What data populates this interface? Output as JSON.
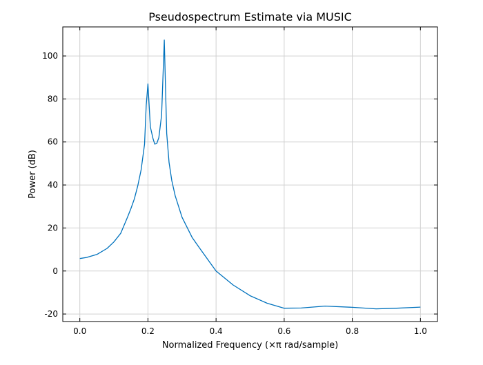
{
  "chart_data": {
    "type": "line",
    "title": "Pseudospectrum Estimate via MUSIC",
    "xlabel": "Normalized Frequency (×π rad/sample)",
    "ylabel": "Power (dB)",
    "xlim": [
      -0.05,
      1.05
    ],
    "ylim": [
      -23.5,
      113.5
    ],
    "xticks": [
      0.0,
      0.2,
      0.4,
      0.6,
      0.8,
      1.0
    ],
    "xtick_labels": [
      "0.0",
      "0.2",
      "0.4",
      "0.6",
      "0.8",
      "1.0"
    ],
    "yticks": [
      -20,
      0,
      20,
      40,
      60,
      80,
      100
    ],
    "ytick_labels": [
      "-20",
      "0",
      "20",
      "40",
      "60",
      "80",
      "100"
    ],
    "grid": true,
    "line_color": "#0072BD",
    "series": [
      {
        "name": "Pseudospectrum",
        "x": [
          0.0,
          0.02,
          0.05,
          0.08,
          0.1,
          0.12,
          0.14,
          0.15,
          0.16,
          0.17,
          0.18,
          0.19,
          0.195,
          0.2,
          0.207,
          0.215,
          0.22,
          0.226,
          0.232,
          0.24,
          0.248,
          0.255,
          0.262,
          0.27,
          0.28,
          0.3,
          0.33,
          0.35,
          0.4,
          0.45,
          0.5,
          0.55,
          0.6,
          0.65,
          0.72,
          0.8,
          0.87,
          0.93,
          1.0
        ],
        "y": [
          5.8,
          6.3,
          7.7,
          10.5,
          13.5,
          17.5,
          25,
          29,
          33.5,
          39.5,
          47,
          59,
          77,
          87,
          67,
          61.5,
          59,
          59.3,
          62,
          72.5,
          107.4,
          64,
          50.5,
          42,
          35,
          25,
          15.5,
          11,
          0,
          -6.5,
          -11.5,
          -15,
          -17.3,
          -17.2,
          -16.3,
          -16.9,
          -17.6,
          -17.3,
          -16.8
        ]
      }
    ]
  }
}
